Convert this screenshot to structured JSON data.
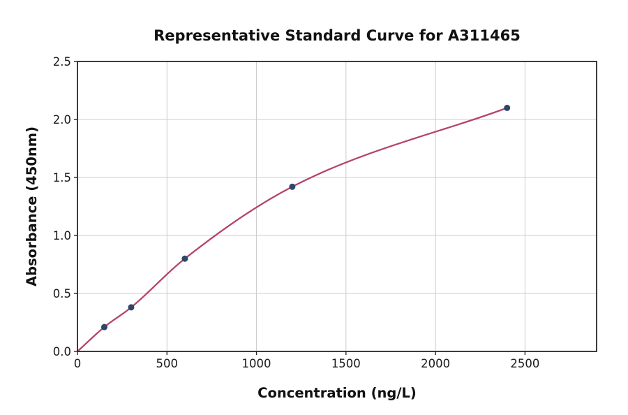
{
  "figure": {
    "background": "#ffffff"
  },
  "chart_data": {
    "type": "scatter",
    "title": "Representative Standard Curve for A311465",
    "xlabel": "Concentration (ng/L)",
    "ylabel": "Absorbance (450nm)",
    "xlim": [
      0,
      2900
    ],
    "ylim": [
      0,
      2.5
    ],
    "x_ticks": [
      0,
      500,
      1000,
      1500,
      2000,
      2500
    ],
    "y_ticks": [
      0,
      0.5,
      1,
      1.5,
      2,
      2.5
    ],
    "grid": true,
    "legend_position": "none",
    "points": {
      "x": [
        150,
        300,
        600,
        1200,
        2400
      ],
      "y": [
        0.21,
        0.38,
        0.8,
        1.42,
        2.1
      ]
    },
    "curve": {
      "description": "smooth fitted standard curve through origin and data points",
      "anchors_x": [
        0,
        150,
        300,
        600,
        1200,
        2400
      ],
      "anchors_y": [
        0,
        0.21,
        0.38,
        0.8,
        1.42,
        2.1
      ]
    },
    "colors": {
      "curve": "#b5446b",
      "marker": "#2e4668",
      "grid": "#cccccc",
      "frame": "#262626",
      "text": "#111111"
    }
  }
}
